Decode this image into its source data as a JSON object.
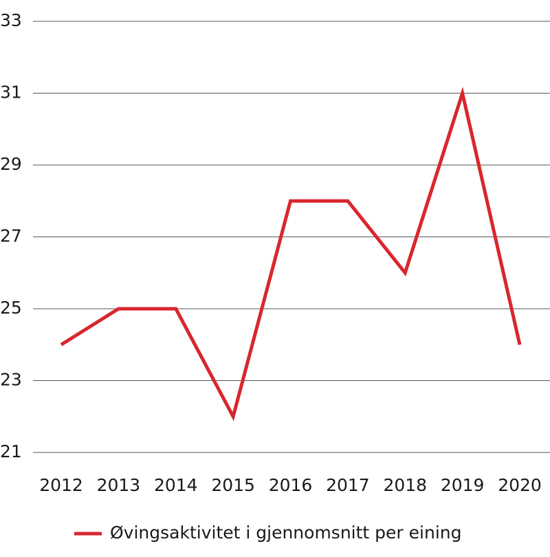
{
  "chart_data": {
    "type": "line",
    "categories": [
      "2012",
      "2013",
      "2014",
      "2015",
      "2016",
      "2017",
      "2018",
      "2019",
      "2020"
    ],
    "series": [
      {
        "name": "Øvingsaktivitet i gjennomsnitt per eining",
        "color": "#d9262e",
        "values": [
          24,
          25,
          25,
          22,
          28,
          28,
          26,
          31,
          24
        ]
      }
    ],
    "ylim": [
      21,
      33
    ],
    "yticks": [
      21,
      23,
      25,
      27,
      29,
      31,
      33
    ],
    "grid": true,
    "legend": "bottom"
  }
}
